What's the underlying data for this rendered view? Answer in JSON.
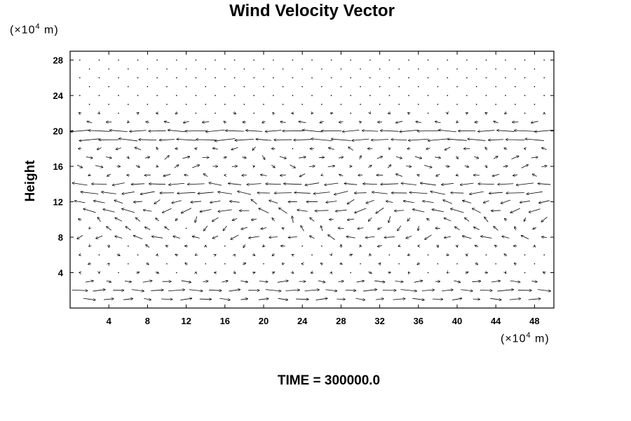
{
  "chart_data": {
    "type": "vector_field",
    "title": "Wind Velocity Vector",
    "ylabel": "Height",
    "xlabel": "",
    "x_unit": {
      "prefix": "(×10",
      "exp": "4",
      "suffix": " m)"
    },
    "y_unit": {
      "prefix": "(×10",
      "exp": "4",
      "suffix": " m)"
    },
    "xlim": [
      0,
      50
    ],
    "ylim": [
      0,
      29
    ],
    "xticks": [
      4,
      8,
      12,
      16,
      20,
      24,
      28,
      32,
      36,
      40,
      44,
      48
    ],
    "yticks": [
      4,
      8,
      12,
      16,
      20,
      24,
      28
    ],
    "grid": false,
    "annotation": "TIME = 300000.0",
    "description_of_field": "Horizontal wind vectors on a regular grid; strongest westward flow near heights 19-21 and 12-15, weak flow near the top, eastward flow near the bottom (heights 1-3)."
  }
}
